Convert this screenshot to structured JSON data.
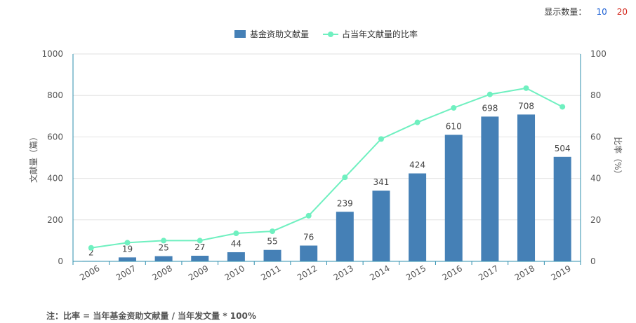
{
  "controls": {
    "display_count_label": "显示数量：",
    "options": [
      "10",
      "20"
    ]
  },
  "footnote": "注：比率 = 当年基金资助文献量 / 当年发文量 * 100%",
  "colors": {
    "bar": "#4580B6",
    "line": "#6FF0C0",
    "axis": "#2E8FAE",
    "grid": "#e2e2e2",
    "opt10": "#1a5fd4",
    "opt20": "#d4251a"
  },
  "chart_data": {
    "type": "bar",
    "title": "",
    "xlabel": "",
    "ylabel": "文献量（篇）",
    "y2label": "比率（%）",
    "categories": [
      "2006",
      "2007",
      "2008",
      "2009",
      "2010",
      "2011",
      "2012",
      "2013",
      "2014",
      "2015",
      "2016",
      "2017",
      "2018",
      "2019"
    ],
    "ylim": [
      0,
      1000
    ],
    "y2lim": [
      0,
      100
    ],
    "yticks": [
      0,
      200,
      400,
      600,
      800,
      1000
    ],
    "y2ticks": [
      0,
      20,
      40,
      60,
      80,
      100
    ],
    "legend_position": "top-center",
    "grid": true,
    "series": [
      {
        "name": "基金资助文献量",
        "type": "bar",
        "axis": "left",
        "values": [
          2,
          19,
          25,
          27,
          44,
          55,
          76,
          239,
          341,
          424,
          610,
          698,
          708,
          504
        ]
      },
      {
        "name": "占当年文献量的比率",
        "type": "line",
        "axis": "right",
        "values": [
          6.5,
          9,
          10,
          10,
          13.5,
          14.5,
          22,
          40.5,
          59,
          67,
          74,
          80.5,
          83.5,
          74.5
        ]
      }
    ]
  }
}
